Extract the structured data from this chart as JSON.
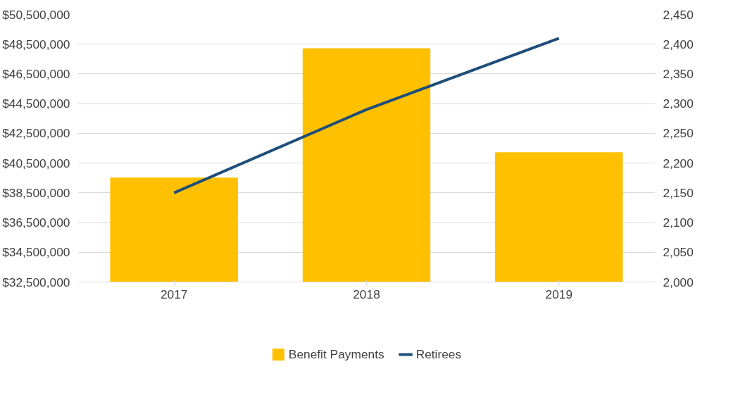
{
  "chart_data": {
    "type": "bar",
    "categories": [
      "2017",
      "2018",
      "2019"
    ],
    "series": [
      {
        "name": "Benefit Payments",
        "color": "#ffc000",
        "values": [
          39500000,
          48200000,
          41200000
        ]
      },
      {
        "name": "Retirees",
        "type": "line",
        "axis": "y2",
        "color": "#1f4e79",
        "values": [
          2150,
          2290,
          2410
        ]
      }
    ],
    "ylim": [
      32500000,
      50500000
    ],
    "yticks": [
      {
        "value": 32500000,
        "label": "$32,500,000"
      },
      {
        "value": 34500000,
        "label": "$34,500,000"
      },
      {
        "value": 36500000,
        "label": "$36,500,000"
      },
      {
        "value": 38500000,
        "label": "$38,500,000"
      },
      {
        "value": 40500000,
        "label": "$40,500,000"
      },
      {
        "value": 42500000,
        "label": "$42,500,000"
      },
      {
        "value": 44500000,
        "label": "$44,500,000"
      },
      {
        "value": 46500000,
        "label": "$46,500,000"
      },
      {
        "value": 48500000,
        "label": "$48,500,000"
      },
      {
        "value": 50500000,
        "label": "$50,500,000"
      }
    ],
    "y2lim": [
      2000,
      2450
    ],
    "y2ticks": [
      {
        "value": 2000,
        "label": "2,000"
      },
      {
        "value": 2050,
        "label": "2,050"
      },
      {
        "value": 2100,
        "label": "2,100"
      },
      {
        "value": 2150,
        "label": "2,150"
      },
      {
        "value": 2200,
        "label": "2,200"
      },
      {
        "value": 2250,
        "label": "2,250"
      },
      {
        "value": 2300,
        "label": "2,300"
      },
      {
        "value": 2350,
        "label": "2,350"
      },
      {
        "value": 2400,
        "label": "2,400"
      },
      {
        "value": 2450,
        "label": "2,450"
      }
    ],
    "grid": "y",
    "legend": "bottom",
    "marker": "none",
    "line_style": "solid"
  }
}
